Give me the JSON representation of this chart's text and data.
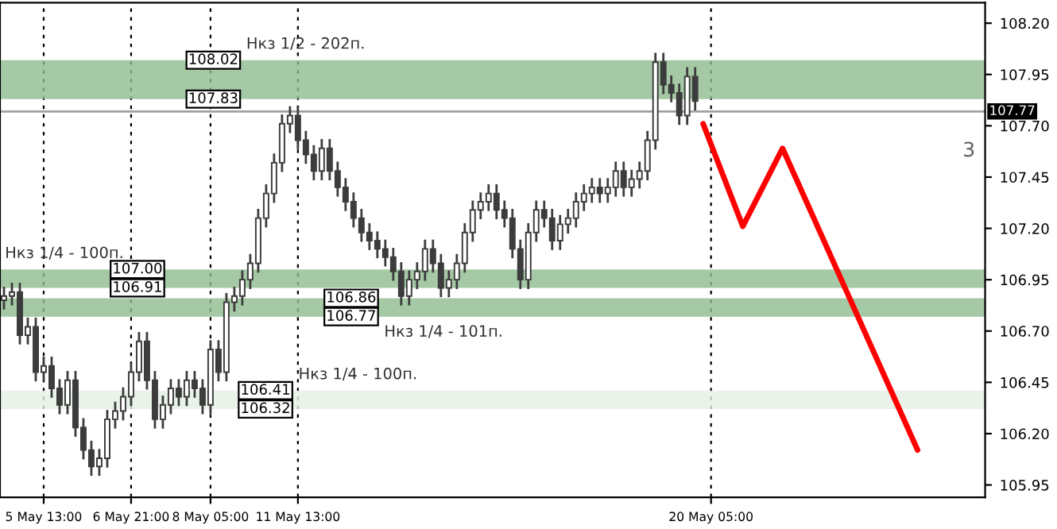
{
  "chart_data": {
    "type": "candlestick",
    "categories": [
      null,
      null,
      null,
      null,
      null,
      "5 May 13:00",
      null,
      null,
      null,
      null,
      null,
      null,
      null,
      null,
      null,
      null,
      "6 May 21:00",
      null,
      null,
      null,
      null,
      null,
      null,
      null,
      null,
      null,
      "8 May 05:00",
      null,
      null,
      null,
      null,
      null,
      null,
      null,
      null,
      null,
      null,
      "11 May 13:00",
      null,
      null,
      null,
      null,
      null,
      null,
      null,
      null,
      null,
      null,
      null,
      null,
      null,
      null,
      null,
      null,
      null,
      null,
      null,
      null,
      null,
      null,
      null,
      null,
      null,
      null,
      null,
      null,
      null,
      null,
      null,
      null,
      null,
      null,
      null,
      null,
      null,
      null,
      null,
      null,
      null,
      null,
      null,
      null,
      null,
      null,
      null,
      null,
      null,
      null,
      null,
      "20 May 05:00",
      null,
      null,
      null,
      null,
      null,
      null,
      null,
      null,
      null,
      null,
      null,
      null,
      null,
      null,
      null,
      null,
      null,
      null,
      null,
      null,
      null,
      null,
      null,
      null,
      null,
      null,
      null,
      null,
      null,
      null,
      null,
      null,
      null,
      null
    ],
    "ohlc": [
      [
        106.85,
        106.91,
        106.81,
        106.87
      ],
      [
        106.87,
        106.93,
        106.83,
        106.89
      ],
      [
        106.89,
        106.93,
        106.64,
        106.68
      ],
      [
        106.68,
        106.76,
        106.64,
        106.72
      ],
      [
        106.72,
        106.76,
        106.46,
        106.5
      ],
      [
        106.5,
        106.57,
        106.46,
        106.53
      ],
      [
        106.53,
        106.57,
        106.38,
        106.42
      ],
      [
        106.42,
        106.46,
        106.3,
        106.34
      ],
      [
        106.34,
        106.5,
        106.3,
        106.46
      ],
      [
        106.46,
        106.5,
        106.19,
        106.23
      ],
      [
        106.23,
        106.27,
        106.08,
        106.12
      ],
      [
        106.12,
        106.16,
        106.0,
        106.04
      ],
      [
        106.04,
        106.12,
        106.0,
        106.08
      ],
      [
        106.08,
        106.31,
        106.04,
        106.27
      ],
      [
        106.27,
        106.35,
        106.23,
        106.31
      ],
      [
        106.31,
        106.42,
        106.27,
        106.38
      ],
      [
        106.38,
        106.54,
        106.34,
        106.5
      ],
      [
        106.5,
        106.69,
        106.46,
        106.65
      ],
      [
        106.65,
        106.69,
        106.42,
        106.46
      ],
      [
        106.46,
        106.5,
        106.23,
        106.27
      ],
      [
        106.27,
        106.38,
        106.23,
        106.34
      ],
      [
        106.34,
        106.46,
        106.3,
        106.42
      ],
      [
        106.42,
        106.46,
        106.34,
        106.38
      ],
      [
        106.38,
        106.5,
        106.34,
        106.46
      ],
      [
        106.46,
        106.5,
        106.38,
        106.42
      ],
      [
        106.42,
        106.46,
        106.3,
        106.34
      ],
      [
        106.34,
        106.65,
        106.3,
        106.61
      ],
      [
        106.61,
        106.65,
        106.46,
        106.5
      ],
      [
        106.5,
        106.88,
        106.46,
        106.84
      ],
      [
        106.84,
        106.91,
        106.8,
        106.87
      ],
      [
        106.87,
        106.99,
        106.83,
        106.95
      ],
      [
        106.95,
        107.07,
        106.91,
        107.03
      ],
      [
        107.03,
        107.29,
        106.99,
        107.25
      ],
      [
        107.25,
        107.41,
        107.21,
        107.37
      ],
      [
        107.37,
        107.56,
        107.33,
        107.52
      ],
      [
        107.52,
        107.75,
        107.48,
        107.71
      ],
      [
        107.71,
        107.79,
        107.67,
        107.75
      ],
      [
        107.75,
        107.79,
        107.59,
        107.63
      ],
      [
        107.63,
        107.67,
        107.52,
        107.56
      ],
      [
        107.56,
        107.6,
        107.44,
        107.48
      ],
      [
        107.48,
        107.63,
        107.44,
        107.59
      ],
      [
        107.59,
        107.63,
        107.44,
        107.48
      ],
      [
        107.48,
        107.52,
        107.36,
        107.4
      ],
      [
        107.4,
        107.44,
        107.29,
        107.33
      ],
      [
        107.33,
        107.37,
        107.21,
        107.25
      ],
      [
        107.25,
        107.29,
        107.14,
        107.18
      ],
      [
        107.18,
        107.22,
        107.1,
        107.14
      ],
      [
        107.14,
        107.18,
        107.06,
        107.1
      ],
      [
        107.1,
        107.14,
        107.02,
        107.06
      ],
      [
        107.06,
        107.1,
        106.95,
        106.99
      ],
      [
        106.99,
        107.03,
        106.83,
        106.87
      ],
      [
        106.87,
        106.99,
        106.83,
        106.95
      ],
      [
        106.95,
        107.03,
        106.91,
        106.99
      ],
      [
        106.99,
        107.14,
        106.95,
        107.1
      ],
      [
        107.1,
        107.14,
        106.99,
        107.03
      ],
      [
        107.03,
        107.07,
        106.87,
        106.91
      ],
      [
        106.91,
        106.99,
        106.87,
        106.95
      ],
      [
        106.95,
        107.07,
        106.91,
        107.03
      ],
      [
        107.03,
        107.22,
        106.99,
        107.18
      ],
      [
        107.18,
        107.33,
        107.14,
        107.29
      ],
      [
        107.29,
        107.37,
        107.25,
        107.33
      ],
      [
        107.33,
        107.41,
        107.29,
        107.37
      ],
      [
        107.37,
        107.41,
        107.25,
        107.29
      ],
      [
        107.29,
        107.33,
        107.21,
        107.25
      ],
      [
        107.25,
        107.29,
        107.06,
        107.1
      ],
      [
        107.1,
        107.14,
        106.91,
        106.95
      ],
      [
        106.95,
        107.22,
        106.91,
        107.18
      ],
      [
        107.18,
        107.33,
        107.14,
        107.29
      ],
      [
        107.29,
        107.33,
        107.21,
        107.25
      ],
      [
        107.25,
        107.29,
        107.1,
        107.14
      ],
      [
        107.14,
        107.26,
        107.1,
        107.22
      ],
      [
        107.22,
        107.29,
        107.18,
        107.25
      ],
      [
        107.25,
        107.37,
        107.21,
        107.33
      ],
      [
        107.33,
        107.41,
        107.29,
        107.37
      ],
      [
        107.37,
        107.44,
        107.33,
        107.4
      ],
      [
        107.4,
        107.44,
        107.33,
        107.37
      ],
      [
        107.37,
        107.44,
        107.33,
        107.4
      ],
      [
        107.4,
        107.52,
        107.36,
        107.48
      ],
      [
        107.48,
        107.52,
        107.36,
        107.4
      ],
      [
        107.4,
        107.48,
        107.36,
        107.44
      ],
      [
        107.44,
        107.52,
        107.4,
        107.48
      ],
      [
        107.48,
        107.67,
        107.44,
        107.63
      ],
      [
        107.63,
        108.05,
        107.59,
        108.01
      ],
      [
        108.01,
        108.05,
        107.86,
        107.9
      ],
      [
        107.9,
        107.94,
        107.82,
        107.86
      ],
      [
        107.86,
        107.9,
        107.71,
        107.75
      ],
      [
        107.75,
        107.98,
        107.71,
        107.94
      ],
      [
        107.94,
        107.98,
        107.78,
        107.82
      ],
      null,
      null,
      null,
      null,
      null,
      null,
      null,
      null,
      null,
      null,
      null,
      null,
      null,
      null,
      null,
      null,
      null,
      null,
      null,
      null,
      null,
      null,
      null,
      null,
      null,
      null,
      null,
      null,
      null,
      null,
      null,
      null,
      null,
      null,
      null,
      null
    ],
    "color": "#3c3c3c",
    "series": [
      {
        "type": "line",
        "color": "#ff0000",
        "values": [
          null,
          null,
          null,
          null,
          null,
          null,
          null,
          null,
          null,
          null,
          null,
          null,
          null,
          null,
          null,
          null,
          null,
          null,
          null,
          null,
          null,
          null,
          null,
          null,
          null,
          null,
          null,
          null,
          null,
          null,
          null,
          null,
          null,
          null,
          null,
          null,
          null,
          null,
          null,
          null,
          null,
          null,
          null,
          null,
          null,
          null,
          null,
          null,
          null,
          null,
          null,
          null,
          null,
          null,
          null,
          null,
          null,
          null,
          null,
          null,
          null,
          null,
          null,
          null,
          null,
          null,
          null,
          null,
          null,
          null,
          null,
          null,
          null,
          null,
          null,
          null,
          null,
          null,
          null,
          null,
          null,
          null,
          null,
          null,
          null,
          null,
          null,
          null,
          107.71,
          null,
          null,
          null,
          null,
          107.21,
          null,
          null,
          null,
          null,
          107.59,
          null,
          null,
          null,
          null,
          null,
          null,
          null,
          null,
          null,
          null,
          null,
          null,
          null,
          null,
          null,
          null,
          106.12,
          null,
          null,
          null,
          null,
          null,
          null,
          null,
          null
        ]
      }
    ],
    "ylim": [
      105.89,
      108.3
    ],
    "yticks": [
      {
        "value": 105.95,
        "label": "105.95"
      },
      {
        "value": 106.2,
        "label": "106.20"
      },
      {
        "value": 106.45,
        "label": "106.45"
      },
      {
        "value": 106.7,
        "label": "106.70"
      },
      {
        "value": 106.95,
        "label": "106.95"
      },
      {
        "value": 107.2,
        "label": "107.20"
      },
      {
        "value": 107.45,
        "label": "107.45"
      },
      {
        "value": 107.7,
        "label": "107.70"
      },
      {
        "value": 107.95,
        "label": "107.95"
      },
      {
        "value": 108.2,
        "label": "108.20"
      }
    ],
    "grid": "x",
    "bands": [
      {
        "axis": "y",
        "from": 107.83,
        "to": 108.02,
        "color": "#8fbc8f",
        "label": "Нкз 1/2 - 202п."
      },
      {
        "axis": "y",
        "from": 106.91,
        "to": 107.0,
        "color": "#8fbc8f",
        "label": "Нкз 1/4 - 100п."
      },
      {
        "axis": "y",
        "from": 106.77,
        "to": 106.86,
        "color": "#8fbc8f",
        "label": "Нкз 1/4 - 101п."
      },
      {
        "axis": "y",
        "from": 106.32,
        "to": 106.41,
        "color": "#e3f0e3",
        "label": "Нкз 1/4 - 100п."
      }
    ],
    "ref_lines": [
      {
        "axis": "y",
        "value": 107.77,
        "label": "107.77",
        "color": "#a0a0a0"
      }
    ],
    "annotations": [
      {
        "text": "108.02",
        "y": 108.02
      },
      {
        "text": "107.83",
        "y": 107.83
      },
      {
        "text": "107.00",
        "y": 107.0
      },
      {
        "text": "106.91",
        "y": 106.91
      },
      {
        "text": "106.86",
        "y": 106.86
      },
      {
        "text": "106.77",
        "y": 106.77
      },
      {
        "text": "106.41",
        "y": 106.41
      },
      {
        "text": "106.32",
        "y": 106.32
      },
      "3"
    ]
  }
}
